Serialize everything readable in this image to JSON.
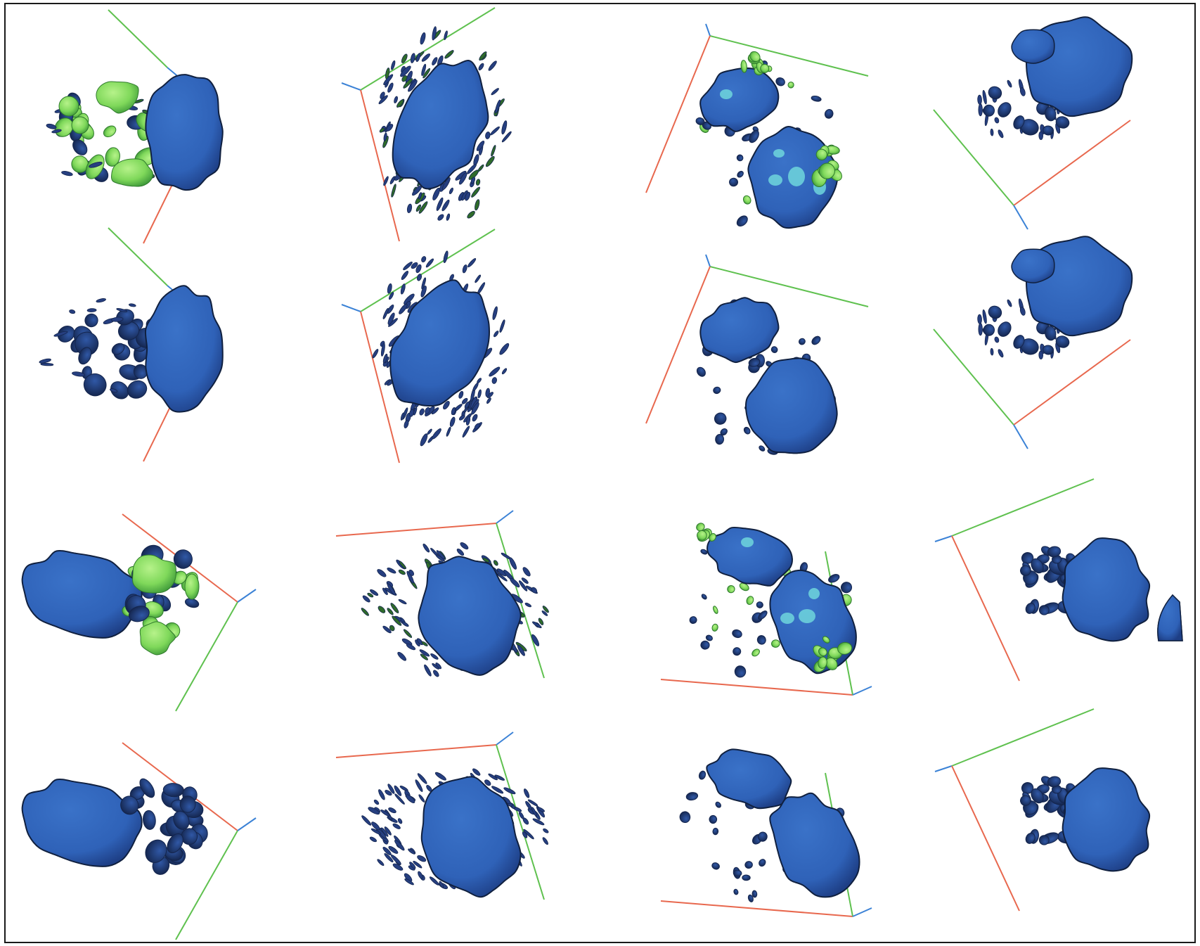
{
  "figure": {
    "rows": 4,
    "columns": 4,
    "colors": {
      "nucleus": "#2f62b8",
      "nucleus_dark": "#1e3f86",
      "nucleus_edge": "#10203f",
      "granule": "#263f80",
      "granule_dark": "#14254d",
      "fluorescence": "#7fd85a",
      "fluorescence_light": "#a9ee7c",
      "cyan_spot": "#6fd6dc",
      "axis_x": "#e8684e",
      "axis_y": "#5fc14f",
      "axis_z": "#3b82d6"
    }
  }
}
